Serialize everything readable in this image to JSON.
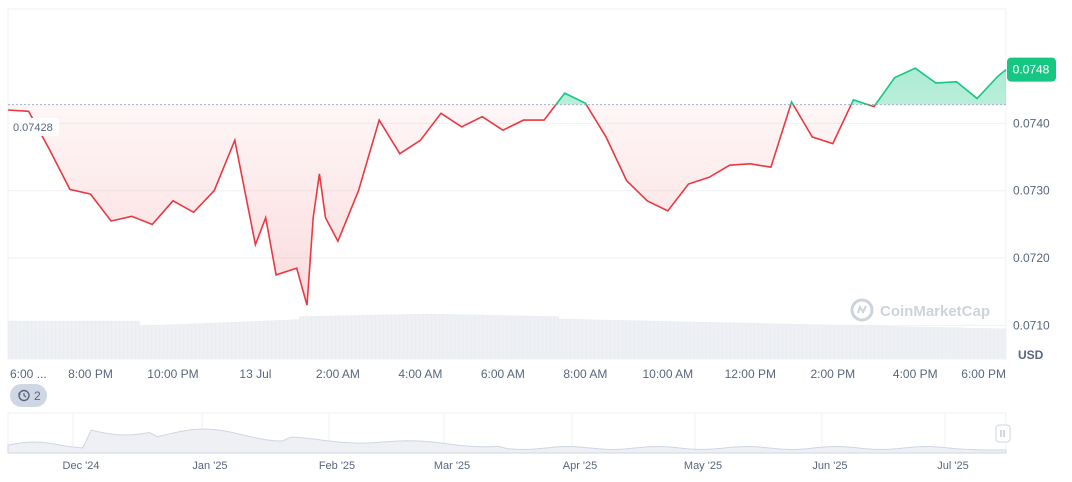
{
  "chart_data": {
    "type": "line",
    "title": "",
    "currency_label": "USD",
    "ylim": [
      0.0705,
      0.0757
    ],
    "y_ticks": [
      "0.0710",
      "0.0720",
      "0.0730",
      "0.0740"
    ],
    "y_tick_values": [
      0.071,
      0.072,
      0.073,
      0.074
    ],
    "x_ticks": [
      "6:00 ...",
      "8:00 PM",
      "10:00 PM",
      "13 Jul",
      "2:00 AM",
      "4:00 AM",
      "6:00 AM",
      "8:00 AM",
      "10:00 AM",
      "12:00 PM",
      "2:00 PM",
      "4:00 PM",
      "6:00 PM"
    ],
    "x_tick_hours": [
      0,
      2,
      4,
      6,
      8,
      10,
      12,
      14,
      16,
      18,
      20,
      22,
      24
    ],
    "reference_price": 0.07428,
    "reference_label": "0.07428",
    "current_price": 0.0748,
    "current_label": "0.0748",
    "color_up": "#16c784",
    "color_down": "#ea3943",
    "series": [
      {
        "x_hours": [
          0,
          0.5,
          1,
          1.5,
          2,
          2.5,
          3,
          3.5,
          4,
          4.5,
          5,
          5.5,
          6,
          6.25,
          6.5,
          7,
          7.25,
          7.4,
          7.55,
          7.7,
          8,
          8.5,
          9,
          9.5,
          10,
          10.5,
          11,
          11.5,
          12,
          12.5,
          13,
          13.5,
          14,
          14.5,
          15,
          15.5,
          16,
          16.5,
          17,
          17.5,
          18,
          18.5,
          19,
          19.5,
          20,
          20.5,
          21,
          21.5,
          22,
          22.5,
          23,
          23.5,
          24,
          24.2
        ],
        "values": [
          0.0742,
          0.07418,
          0.07362,
          0.07302,
          0.07295,
          0.07255,
          0.07262,
          0.0725,
          0.07285,
          0.07268,
          0.073,
          0.07375,
          0.0722,
          0.0726,
          0.07175,
          0.07185,
          0.0713,
          0.0726,
          0.07325,
          0.0726,
          0.07225,
          0.073,
          0.07405,
          0.07355,
          0.07375,
          0.07415,
          0.07395,
          0.0741,
          0.0739,
          0.07405,
          0.07405,
          0.07445,
          0.0743,
          0.0738,
          0.07315,
          0.07285,
          0.0727,
          0.0731,
          0.0732,
          0.07338,
          0.0734,
          0.07335,
          0.07432,
          0.0738,
          0.0737,
          0.07435,
          0.07425,
          0.07468,
          0.07482,
          0.0746,
          0.07462,
          0.07437,
          0.0747,
          0.0748
        ]
      }
    ],
    "volume_note": "",
    "navigator": {
      "months": [
        "Dec '24",
        "Jan '25",
        "Feb '25",
        "Mar '25",
        "Apr '25",
        "May '25",
        "Jun '25",
        "Jul '25"
      ]
    }
  },
  "badge": {
    "icon": "history-icon",
    "count": "2"
  },
  "watermark": {
    "text": "CoinMarketCap",
    "icon": "coinmarketcap-logo-icon"
  },
  "navigator_handle": {
    "icon": "pause-handle-icon"
  }
}
